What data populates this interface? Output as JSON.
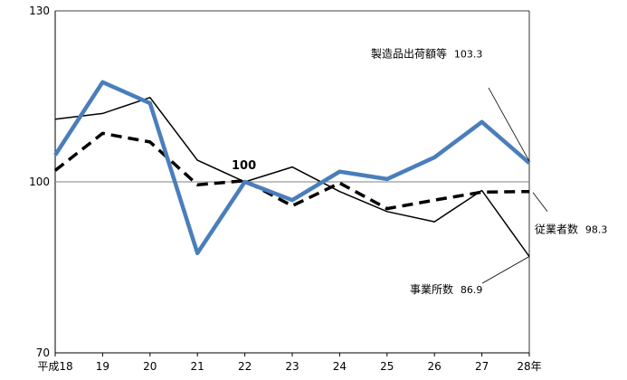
{
  "chart_data": {
    "type": "line",
    "categories": [
      "平成18",
      "19",
      "20",
      "21",
      "22",
      "23",
      "24",
      "25",
      "26",
      "27",
      "28年"
    ],
    "ylim": [
      70,
      130
    ],
    "yticks": [
      70,
      100,
      130
    ],
    "grid": false,
    "reference_line": 100,
    "center_label": "100",
    "series": [
      {
        "name": "製造品出荷額等",
        "values": [
          104.7,
          117.5,
          113.8,
          87.5,
          100.0,
          96.8,
          101.8,
          100.5,
          104.3,
          110.5,
          103.3
        ],
        "color": "#4A7EBB",
        "style": "solid-thick",
        "label_value": "103.3"
      },
      {
        "name": "従業者数",
        "values": [
          102.0,
          108.5,
          107.0,
          99.5,
          100.2,
          95.8,
          99.8,
          95.3,
          96.8,
          98.2,
          98.3
        ],
        "color": "#000000",
        "style": "dashed",
        "label_value": "98.3"
      },
      {
        "name": "事業所数",
        "values": [
          111.0,
          112.0,
          114.8,
          103.8,
          100.0,
          102.6,
          98.3,
          94.8,
          93.0,
          98.5,
          86.9
        ],
        "color": "#000000",
        "style": "solid-thin",
        "label_value": "86.9"
      }
    ]
  }
}
